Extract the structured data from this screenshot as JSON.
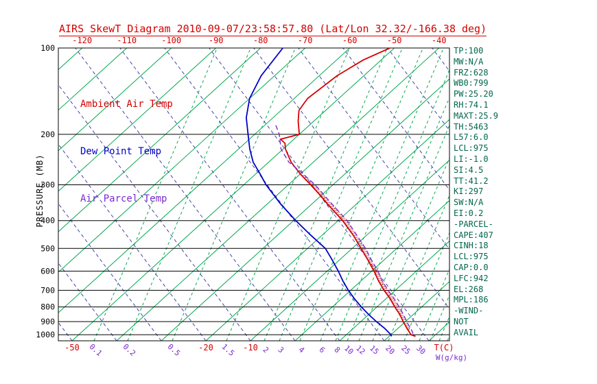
{
  "title": "AIRS SkewT Diagram 2010-09-07/23:58:57.80 (Lat/Lon 32.32/-166.38 deg)",
  "axis": {
    "pressure_title": "PRESSURE (MB)",
    "temp_unit": "T(C)",
    "mix_unit": "W(g/kg)"
  },
  "legend": [
    {
      "id": "ambient",
      "label": "Ambient Air Temp",
      "color": "#d40000"
    },
    {
      "id": "dew",
      "label": "Dew Point Temp",
      "color": "#0000c8"
    },
    {
      "id": "parcel",
      "label": "Air Parcel Temp",
      "color": "#7a2bd0"
    }
  ],
  "stats_panel": {
    "lines": [
      "TP:100",
      "MW:N/A",
      "FRZ:628",
      "WB0:799",
      "PW:25.20",
      "RH:74.1",
      "MAXT:25.9",
      "TH:5463",
      "L57:6.0",
      "LCL:975",
      "LI:-1.0",
      "SI:4.5",
      "TT:41.2",
      "KI:297",
      "SW:N/A",
      "EI:0.2",
      "-PARCEL-",
      "CAPE:407",
      "CINH:18",
      "LCL:975",
      "CAP:0.0",
      "LFC:942",
      "EL:268",
      "MPL:186",
      "-WIND-",
      "NOT",
      "AVAIL"
    ]
  },
  "colors": {
    "red": "#d40000",
    "green": "#00a84f",
    "blue": "#0000c8",
    "purple": "#7a2bd0",
    "adiabat": "#4444aa",
    "stats_text": "#00664c",
    "black": "#000000"
  },
  "chart_data": {
    "type": "skewt-sounding",
    "title": "AIRS SkewT Diagram 2010-09-07/23:58:57.80 (Lat/Lon 32.32/-166.38 deg)",
    "ylabel": "PRESSURE (MB)",
    "pressure_levels_mb": [
      100,
      200,
      300,
      400,
      500,
      600,
      700,
      800,
      900,
      1000
    ],
    "pressure_range_mb": [
      100,
      1050
    ],
    "top_temp_labels_c": [
      -120,
      -110,
      -100,
      -90,
      -80,
      -70,
      -60,
      -50,
      -40
    ],
    "bottom_temp_labels_c": [
      -50,
      -20,
      -10
    ],
    "isotherms_c": {
      "min": -120,
      "max": 40,
      "step": 10
    },
    "mixing_ratio_labels": [
      {
        "w": 0.1,
        "x": 137
      },
      {
        "w": 0.2,
        "x": 186
      },
      {
        "w": 0.5,
        "x": 251
      },
      {
        "w": 1.5,
        "x": 330
      },
      {
        "w": 2,
        "x": 385
      },
      {
        "w": 3,
        "x": 407
      },
      {
        "w": 4,
        "x": 437
      },
      {
        "w": 6,
        "x": 467
      },
      {
        "w": 8,
        "x": 489
      },
      {
        "w": 10,
        "x": 506
      },
      {
        "w": 12,
        "x": 523
      },
      {
        "w": 15,
        "x": 543
      },
      {
        "w": 20,
        "x": 566
      },
      {
        "w": 25,
        "x": 589
      },
      {
        "w": 30,
        "x": 611
      }
    ],
    "mixing_extra_lines_x": [
      627,
      640,
      652
    ],
    "series": [
      {
        "id": "ambient",
        "name": "Ambient Air Temp",
        "color": "#d40000",
        "style": "solid",
        "points_p_t": [
          [
            100,
            -51
          ],
          [
            110,
            -54
          ],
          [
            125,
            -56
          ],
          [
            150,
            -57
          ],
          [
            165,
            -56
          ],
          [
            180,
            -53.5
          ],
          [
            200,
            -50
          ],
          [
            208,
            -53
          ],
          [
            215,
            -51
          ],
          [
            225,
            -49.5
          ],
          [
            250,
            -45
          ],
          [
            275,
            -40
          ],
          [
            300,
            -35
          ],
          [
            325,
            -30.5
          ],
          [
            350,
            -26.5
          ],
          [
            400,
            -19
          ],
          [
            450,
            -13
          ],
          [
            500,
            -8
          ],
          [
            550,
            -3.5
          ],
          [
            600,
            0.5
          ],
          [
            650,
            4
          ],
          [
            700,
            7.5
          ],
          [
            750,
            11
          ],
          [
            800,
            14
          ],
          [
            850,
            17
          ],
          [
            900,
            19.5
          ],
          [
            950,
            22
          ],
          [
            1000,
            24.5
          ],
          [
            1013,
            25.9
          ]
        ]
      },
      {
        "id": "dew",
        "name": "Dew Point Temp",
        "color": "#0000c8",
        "style": "solid",
        "points_p_t": [
          [
            100,
            -75
          ],
          [
            125,
            -73
          ],
          [
            150,
            -70
          ],
          [
            175,
            -66
          ],
          [
            200,
            -61.5
          ],
          [
            225,
            -57.5
          ],
          [
            250,
            -53.5
          ],
          [
            275,
            -49
          ],
          [
            300,
            -45
          ],
          [
            350,
            -37
          ],
          [
            400,
            -29.5
          ],
          [
            450,
            -22.5
          ],
          [
            500,
            -16
          ],
          [
            550,
            -11.5
          ],
          [
            600,
            -7.5
          ],
          [
            650,
            -4
          ],
          [
            700,
            -0.5
          ],
          [
            750,
            3
          ],
          [
            800,
            6.5
          ],
          [
            850,
            10
          ],
          [
            900,
            13.5
          ],
          [
            950,
            17
          ],
          [
            1000,
            20
          ],
          [
            1013,
            20.5
          ]
        ]
      },
      {
        "id": "parcel",
        "name": "Air Parcel Temp",
        "color": "#7a2bd0",
        "style": "dashed",
        "points_p_t": [
          [
            186,
            -57.5
          ],
          [
            200,
            -54.5
          ],
          [
            225,
            -50.5
          ],
          [
            250,
            -45.5
          ],
          [
            268,
            -41
          ],
          [
            300,
            -34
          ],
          [
            350,
            -25.5
          ],
          [
            400,
            -18
          ],
          [
            450,
            -12.2
          ],
          [
            500,
            -7
          ],
          [
            550,
            -2.7
          ],
          [
            600,
            1.4
          ],
          [
            650,
            4.8
          ],
          [
            700,
            8.4
          ],
          [
            750,
            11.9
          ],
          [
            800,
            15
          ],
          [
            850,
            17.8
          ],
          [
            900,
            20.3
          ],
          [
            950,
            22.8
          ],
          [
            975,
            24
          ],
          [
            1000,
            25
          ],
          [
            1013,
            25.5
          ]
        ]
      }
    ],
    "indices": {
      "TP": 100,
      "MW": "N/A",
      "FRZ": 628,
      "WB0": 799,
      "PW": 25.2,
      "RH": 74.1,
      "MAXT": 25.9,
      "TH": 5463,
      "L57": 6.0,
      "LCL": 975,
      "LI": -1.0,
      "SI": 4.5,
      "TT": 41.2,
      "KI": 297,
      "SW": "N/A",
      "EI": 0.2,
      "CAPE": 407,
      "CINH": 18,
      "LCL2": 975,
      "CAP": 0.0,
      "LFC": 942,
      "EL": 268,
      "MPL": 186,
      "WIND": "NOT AVAIL"
    }
  }
}
